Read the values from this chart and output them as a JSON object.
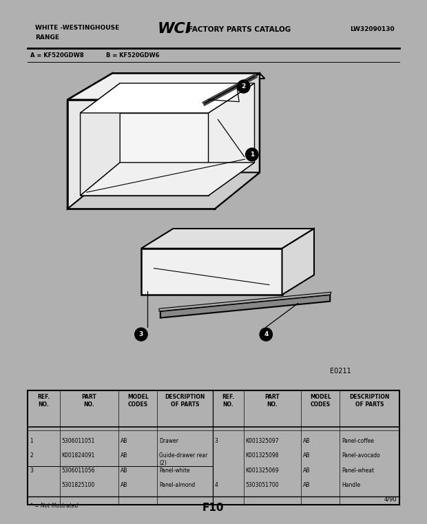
{
  "outer_bg": "#b0b0b0",
  "inner_bg": "#ffffff",
  "header_text_left1": "WHITE -WESTINGHOUSE",
  "header_text_left2": "RANGE",
  "header_wci": "WCI",
  "header_catalog": "FACTORY PARTS CATALOG",
  "header_right": "LW32090130",
  "model_line_a": "A = KF520GDW8",
  "model_line_b": "B = KF520GDW6",
  "diagram_code": "E0211",
  "footer_note": "* = Not Illustrated",
  "footer_center": "F10",
  "footer_right": "4/90",
  "left_rows": [
    {
      "ref": "1",
      "part": "5306011051",
      "model": "AB",
      "desc": "Drawer"
    },
    {
      "ref": "2",
      "part": "K001824091",
      "model": "AB",
      "desc": "Guide-drawer rear\n(2)"
    },
    {
      "ref": "3",
      "part": "5306011056",
      "model": "AB",
      "desc": "Panel-white"
    },
    {
      "ref": "",
      "part": "5301825100",
      "model": "AB",
      "desc": "Panel-almond"
    }
  ],
  "right_rows": [
    {
      "ref": "3",
      "part": "K001325097",
      "model": "AB",
      "desc": "Panel-coffee"
    },
    {
      "ref": "",
      "part": "K001325098",
      "model": "AB",
      "desc": "Panel-avocado"
    },
    {
      "ref": "",
      "part": "K001325069",
      "model": "AB",
      "desc": "Panel-wheat"
    },
    {
      "ref": "4",
      "part": "5303051700",
      "model": "AB",
      "desc": "Handle"
    }
  ]
}
